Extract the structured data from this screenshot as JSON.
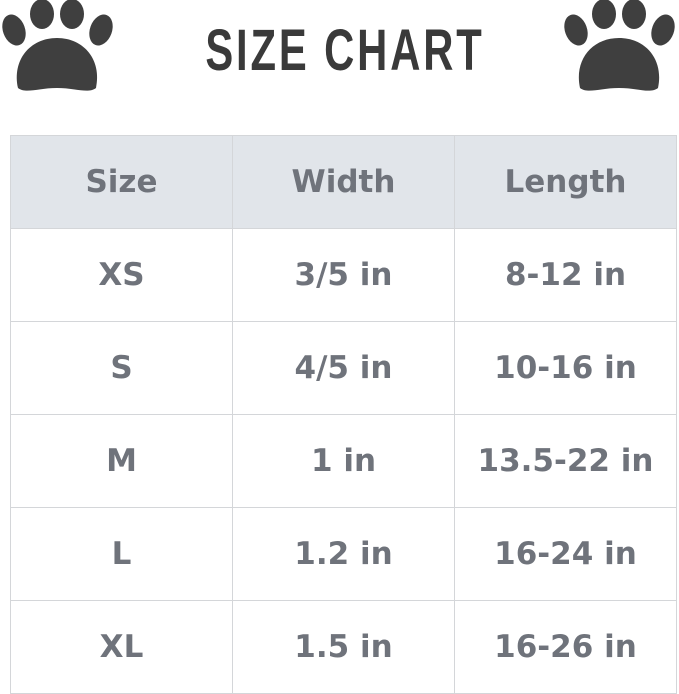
{
  "title": "SIZE CHART",
  "icons": {
    "left": "paw-print-icon",
    "right": "paw-print-icon",
    "color": "#3f3f3f"
  },
  "table": {
    "headers": [
      "Size",
      "Width",
      "Length"
    ],
    "rows": [
      [
        "XS",
        "3/5 in",
        "8-12 in"
      ],
      [
        "S",
        "4/5 in",
        "10-16 in"
      ],
      [
        "M",
        "1 in",
        "13.5-22 in"
      ],
      [
        "L",
        "1.2 in",
        "16-24 in"
      ],
      [
        "XL",
        "1.5 in",
        "16-26 in"
      ]
    ],
    "header_bg": "#e1e5ea",
    "text_color": "#6f737b"
  }
}
